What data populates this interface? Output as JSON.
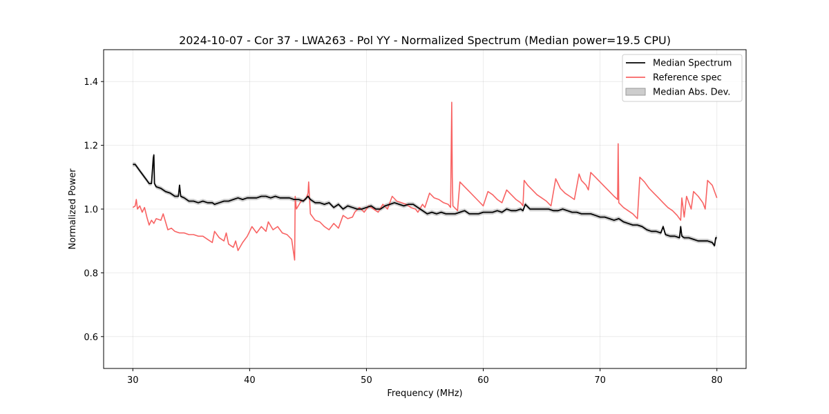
{
  "chart_data": {
    "type": "line",
    "title": "2024-10-07 - Cor 37 - LWA263 - Pol YY - Normalized Spectrum (Median power=19.5 CPU)",
    "xlabel": "Frequency (MHz)",
    "ylabel": "Normalized Power",
    "xlim": [
      27.5,
      82.5
    ],
    "ylim": [
      0.5,
      1.5
    ],
    "xticks": [
      30,
      40,
      50,
      60,
      70,
      80
    ],
    "yticks": [
      0.6,
      0.8,
      1.0,
      1.2,
      1.4
    ],
    "xtick_labels": [
      "30",
      "40",
      "50",
      "60",
      "70",
      "80"
    ],
    "ytick_labels": [
      "0.6",
      "0.8",
      "1.0",
      "1.2",
      "1.4"
    ],
    "grid": true,
    "legend_position": "top-right",
    "legend": [
      {
        "label": "Median Spectrum",
        "kind": "line",
        "color": "#000000"
      },
      {
        "label": "Reference spec",
        "kind": "line",
        "color": "#f86262"
      },
      {
        "label": "Median Abs. Dev.",
        "kind": "patch",
        "color": "#c0c0c0"
      }
    ],
    "series": [
      {
        "name": "Median Spectrum",
        "color": "#000000",
        "x": [
          30.0,
          30.2,
          30.4,
          30.6,
          30.8,
          31.0,
          31.2,
          31.4,
          31.6,
          31.75,
          31.8,
          31.85,
          32.0,
          32.4,
          32.8,
          33.2,
          33.6,
          33.9,
          34.0,
          34.1,
          34.4,
          34.8,
          35.2,
          35.6,
          36.0,
          36.4,
          36.8,
          37.0,
          37.4,
          37.8,
          38.2,
          38.6,
          39.0,
          39.4,
          39.8,
          40.2,
          40.6,
          41.0,
          41.4,
          41.8,
          42.2,
          42.6,
          43.0,
          43.4,
          43.8,
          44.2,
          44.6,
          45.0,
          45.2,
          45.6,
          46.0,
          46.4,
          46.8,
          47.2,
          47.6,
          48.0,
          48.4,
          48.8,
          49.2,
          49.6,
          50.0,
          50.4,
          50.8,
          51.2,
          51.6,
          52.0,
          52.4,
          52.8,
          53.2,
          53.6,
          54.0,
          54.4,
          54.8,
          55.2,
          55.6,
          56.0,
          56.4,
          56.8,
          57.2,
          57.6,
          58.0,
          58.4,
          58.8,
          59.2,
          59.6,
          60.0,
          60.4,
          60.8,
          61.2,
          61.6,
          62.0,
          62.4,
          62.8,
          63.2,
          63.4,
          63.6,
          64.0,
          64.4,
          64.8,
          65.2,
          65.6,
          66.0,
          66.4,
          66.8,
          67.2,
          67.6,
          68.0,
          68.4,
          68.8,
          69.2,
          69.6,
          70.0,
          70.4,
          70.8,
          71.2,
          71.6,
          72.0,
          72.4,
          72.8,
          73.2,
          73.6,
          74.0,
          74.4,
          74.8,
          75.2,
          75.4,
          75.6,
          76.0,
          76.4,
          76.8,
          76.9,
          77.0,
          77.2,
          77.6,
          78.0,
          78.4,
          78.8,
          79.2,
          79.6,
          79.8,
          79.9,
          80.0
        ],
        "y": [
          1.14,
          1.14,
          1.13,
          1.12,
          1.11,
          1.1,
          1.09,
          1.08,
          1.08,
          1.16,
          1.17,
          1.08,
          1.07,
          1.065,
          1.055,
          1.05,
          1.04,
          1.04,
          1.075,
          1.04,
          1.035,
          1.025,
          1.025,
          1.02,
          1.025,
          1.02,
          1.02,
          1.015,
          1.02,
          1.025,
          1.025,
          1.03,
          1.035,
          1.03,
          1.035,
          1.035,
          1.035,
          1.04,
          1.04,
          1.035,
          1.04,
          1.035,
          1.035,
          1.035,
          1.03,
          1.03,
          1.025,
          1.04,
          1.03,
          1.02,
          1.02,
          1.015,
          1.02,
          1.005,
          1.015,
          1.0,
          1.01,
          1.005,
          1.0,
          1.0,
          1.005,
          1.01,
          1.0,
          1.0,
          1.01,
          1.015,
          1.02,
          1.015,
          1.01,
          1.015,
          1.015,
          1.005,
          0.995,
          0.985,
          0.99,
          0.985,
          0.99,
          0.985,
          0.985,
          0.985,
          0.99,
          0.995,
          0.985,
          0.985,
          0.985,
          0.99,
          0.99,
          0.99,
          0.995,
          0.99,
          1.0,
          0.995,
          0.995,
          1.0,
          0.995,
          1.015,
          1.0,
          1.0,
          1.0,
          1.0,
          1.0,
          0.995,
          0.995,
          1.0,
          0.995,
          0.99,
          0.99,
          0.985,
          0.985,
          0.985,
          0.98,
          0.975,
          0.975,
          0.97,
          0.965,
          0.97,
          0.96,
          0.955,
          0.95,
          0.95,
          0.945,
          0.935,
          0.93,
          0.93,
          0.925,
          0.945,
          0.92,
          0.915,
          0.915,
          0.91,
          0.945,
          0.915,
          0.91,
          0.91,
          0.905,
          0.9,
          0.9,
          0.9,
          0.895,
          0.885,
          0.91,
          0.91
        ]
      },
      {
        "name": "Reference spec",
        "color": "#f86262",
        "x": [
          30.0,
          30.2,
          30.3,
          30.4,
          30.6,
          30.8,
          31.0,
          31.2,
          31.4,
          31.6,
          31.8,
          32.0,
          32.4,
          32.6,
          32.8,
          33.0,
          33.3,
          33.6,
          34.0,
          34.4,
          34.8,
          35.2,
          35.6,
          36.0,
          36.4,
          36.8,
          37.0,
          37.4,
          37.8,
          38.0,
          38.2,
          38.6,
          38.8,
          39.0,
          39.4,
          39.8,
          40.2,
          40.6,
          41.0,
          41.4,
          41.6,
          42.0,
          42.4,
          42.8,
          43.2,
          43.6,
          43.85,
          43.9,
          44.0,
          44.4,
          44.8,
          45.0,
          45.05,
          45.2,
          45.6,
          46.0,
          46.4,
          46.8,
          47.2,
          47.6,
          48.0,
          48.4,
          48.8,
          49.0,
          49.4,
          49.8,
          50.2,
          50.6,
          51.0,
          51.4,
          51.8,
          52.2,
          52.6,
          53.0,
          53.4,
          53.8,
          54.2,
          54.4,
          54.8,
          55.0,
          55.4,
          55.8,
          56.2,
          56.6,
          57.0,
          57.2,
          57.3,
          57.35,
          57.4,
          57.8,
          58.0,
          58.4,
          58.8,
          59.2,
          59.6,
          60.0,
          60.4,
          60.8,
          61.2,
          61.6,
          62.0,
          62.4,
          62.8,
          63.2,
          63.4,
          63.5,
          63.8,
          64.2,
          64.6,
          65.0,
          65.4,
          65.8,
          66.2,
          66.4,
          66.6,
          67.0,
          67.4,
          67.8,
          68.2,
          68.4,
          68.8,
          69.0,
          69.2,
          69.6,
          70.0,
          70.4,
          70.8,
          71.2,
          71.5,
          71.55,
          71.6,
          72.0,
          72.4,
          72.8,
          73.2,
          73.4,
          73.8,
          74.2,
          74.6,
          75.0,
          75.4,
          75.8,
          76.2,
          76.6,
          76.9,
          77.0,
          77.2,
          77.4,
          77.8,
          78.0,
          78.4,
          78.8,
          79.0,
          79.2,
          79.6,
          80.0
        ],
        "y": [
          1.005,
          1.01,
          1.03,
          1.0,
          1.01,
          0.99,
          1.005,
          0.975,
          0.95,
          0.965,
          0.955,
          0.97,
          0.965,
          0.985,
          0.96,
          0.935,
          0.94,
          0.93,
          0.925,
          0.925,
          0.92,
          0.92,
          0.915,
          0.915,
          0.905,
          0.895,
          0.93,
          0.91,
          0.9,
          0.925,
          0.89,
          0.88,
          0.9,
          0.87,
          0.895,
          0.915,
          0.945,
          0.925,
          0.945,
          0.93,
          0.96,
          0.935,
          0.945,
          0.925,
          0.92,
          0.905,
          0.84,
          1.04,
          1.0,
          1.025,
          1.03,
          1.05,
          1.085,
          0.985,
          0.965,
          0.96,
          0.945,
          0.935,
          0.955,
          0.94,
          0.98,
          0.97,
          0.975,
          0.99,
          1.005,
          0.99,
          1.01,
          1.0,
          0.99,
          1.015,
          1.0,
          1.04,
          1.025,
          1.02,
          1.015,
          1.005,
          1.0,
          0.99,
          1.015,
          1.005,
          1.05,
          1.035,
          1.03,
          1.02,
          1.015,
          1.005,
          1.335,
          1.1,
          1.01,
          0.995,
          1.085,
          1.07,
          1.055,
          1.04,
          1.025,
          1.01,
          1.055,
          1.045,
          1.03,
          1.02,
          1.06,
          1.045,
          1.03,
          1.02,
          1.01,
          1.09,
          1.075,
          1.06,
          1.045,
          1.035,
          1.025,
          1.01,
          1.095,
          1.08,
          1.065,
          1.05,
          1.04,
          1.03,
          1.11,
          1.09,
          1.075,
          1.06,
          1.115,
          1.1,
          1.085,
          1.07,
          1.055,
          1.04,
          1.03,
          1.205,
          1.02,
          1.005,
          0.995,
          0.985,
          0.97,
          1.1,
          1.085,
          1.065,
          1.05,
          1.035,
          1.02,
          1.005,
          0.995,
          0.98,
          0.965,
          1.035,
          0.975,
          1.04,
          1.0,
          1.055,
          1.04,
          1.02,
          1.0,
          1.09,
          1.075,
          1.035
        ]
      }
    ],
    "band": {
      "name": "Median Abs. Dev.",
      "half_width": 0.007
    }
  }
}
